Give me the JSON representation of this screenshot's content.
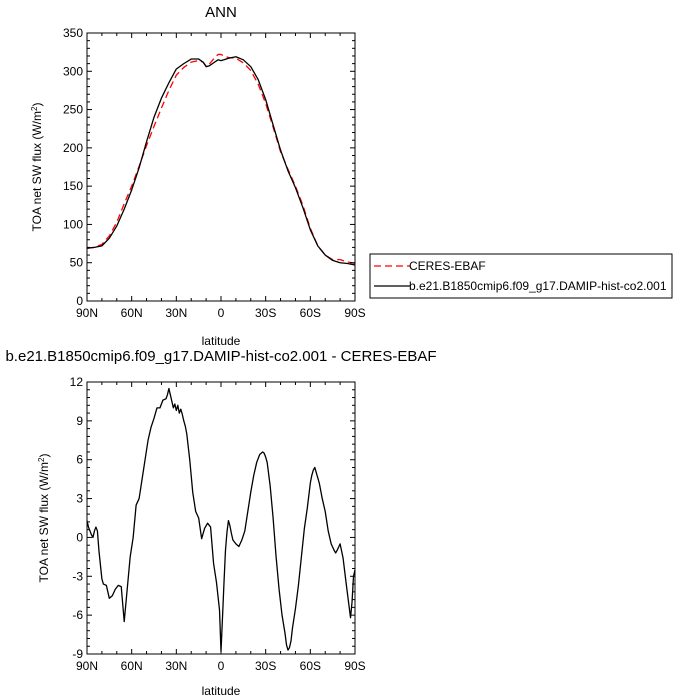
{
  "chart_data": [
    {
      "type": "line",
      "title": "ANN",
      "xlabel": "latitude",
      "ylabel": "TOA net SW flux (W/m²)",
      "ylabel_main": "TOA net SW flux (W/m",
      "ylabel_sup": "2",
      "ylabel_tail": ")",
      "x_unit": "degrees latitude (positive = North)",
      "xlim": [
        90,
        -90
      ],
      "ylim": [
        0,
        350
      ],
      "xticks": [
        90,
        60,
        30,
        0,
        -30,
        -60,
        -90
      ],
      "xtick_labels": [
        "90N",
        "60N",
        "30N",
        "0",
        "30S",
        "60S",
        "90S"
      ],
      "yticks": [
        0,
        50,
        100,
        150,
        200,
        250,
        300,
        350
      ],
      "legend_position": "right, outside the plot",
      "series": [
        {
          "name": "CERES-EBAF",
          "color": "#ff0000",
          "style": "dashed",
          "x": [
            90,
            85,
            80,
            75,
            70,
            65,
            60,
            55,
            50,
            45,
            40,
            35,
            30,
            25,
            20,
            15,
            12,
            10,
            8,
            5,
            2,
            0,
            -2,
            -5,
            -10,
            -15,
            -20,
            -25,
            -30,
            -35,
            -40,
            -45,
            -50,
            -55,
            -60,
            -65,
            -70,
            -75,
            -80,
            -85,
            -90
          ],
          "y": [
            69,
            70,
            74,
            85,
            103,
            127,
            150,
            176,
            203,
            228,
            252,
            275,
            295,
            305,
            312,
            314,
            312,
            307,
            309,
            316,
            322,
            322,
            320,
            318,
            317,
            311,
            301,
            283,
            258,
            227,
            195,
            172,
            150,
            125,
            95,
            72,
            60,
            54,
            54,
            51,
            49
          ]
        },
        {
          "name": "b.e21.B1850cmip6.f09_g17.DAMIP-hist-co2.001",
          "color": "#000000",
          "style": "solid",
          "x": [
            90,
            85,
            80,
            75,
            70,
            65,
            60,
            55,
            50,
            45,
            40,
            35,
            30,
            25,
            20,
            15,
            12,
            10,
            8,
            5,
            2,
            0,
            -2,
            -5,
            -10,
            -15,
            -20,
            -25,
            -30,
            -35,
            -40,
            -45,
            -50,
            -55,
            -60,
            -65,
            -70,
            -75,
            -80,
            -85,
            -90
          ],
          "y": [
            69,
            70,
            72,
            82,
            98,
            120,
            145,
            174,
            208,
            240,
            265,
            285,
            303,
            310,
            316,
            316,
            312,
            306,
            307,
            311,
            315,
            314,
            315,
            317,
            319,
            315,
            306,
            289,
            263,
            230,
            197,
            170,
            148,
            122,
            93,
            72,
            60,
            53,
            50,
            49,
            47
          ]
        }
      ]
    },
    {
      "type": "line",
      "title": "b.e21.B1850cmip6.f09_g17.DAMIP-hist-co2.001 - CERES-EBAF",
      "xlabel": "latitude",
      "ylabel": "TOA net SW flux (W/m²)",
      "ylabel_main": "TOA net SW flux (W/m",
      "ylabel_sup": "2",
      "ylabel_tail": ")",
      "x_unit": "degrees latitude (positive = North)",
      "xlim": [
        90,
        -90
      ],
      "ylim": [
        -9,
        12
      ],
      "xticks": [
        90,
        60,
        30,
        0,
        -30,
        -60,
        -90
      ],
      "xtick_labels": [
        "90N",
        "60N",
        "30N",
        "0",
        "30S",
        "60S",
        "90S"
      ],
      "yticks": [
        -9,
        -6,
        -3,
        0,
        3,
        6,
        9,
        12
      ],
      "series": [
        {
          "color": "#000000",
          "style": "solid",
          "x": [
            90,
            89,
            87,
            86,
            85,
            84,
            83,
            82,
            80,
            79,
            77,
            75,
            73,
            71,
            69,
            67,
            65,
            63,
            61,
            59,
            57,
            55,
            53,
            51,
            49,
            47,
            45,
            43,
            41,
            39,
            37,
            36,
            35,
            34,
            33,
            32,
            31,
            30,
            29,
            28,
            27,
            26,
            25,
            24,
            23,
            21,
            19,
            17,
            15,
            13,
            11,
            9,
            7,
            5,
            3,
            1,
            0,
            -1,
            -2,
            -3,
            -4,
            -5,
            -6,
            -7,
            -8,
            -10,
            -12,
            -14,
            -16,
            -18,
            -20,
            -22,
            -24,
            -26,
            -28,
            -29,
            -30,
            -31,
            -33,
            -35,
            -37,
            -39,
            -41,
            -43,
            -44,
            -45,
            -46,
            -47,
            -48,
            -50,
            -52,
            -54,
            -56,
            -58,
            -60,
            -61,
            -62,
            -63,
            -64,
            -66,
            -68,
            -70,
            -72,
            -74,
            -76,
            -77,
            -78,
            -80,
            -82,
            -84,
            -86,
            -87,
            -88,
            -89,
            -90
          ],
          "y": [
            1.3,
            0.8,
            0.2,
            0.0,
            0.5,
            0.8,
            0.5,
            -1.0,
            -3.2,
            -3.6,
            -3.7,
            -4.7,
            -4.5,
            -4.0,
            -3.7,
            -3.8,
            -6.5,
            -4.0,
            -1.5,
            0.0,
            2.5,
            3.0,
            4.5,
            6.0,
            7.5,
            8.5,
            9.2,
            10.0,
            10.0,
            10.6,
            10.7,
            11.0,
            11.5,
            11.0,
            10.5,
            10.0,
            10.3,
            9.8,
            10.2,
            9.6,
            9.9,
            9.5,
            9.0,
            8.6,
            8.0,
            6.0,
            3.5,
            2.0,
            1.5,
            -0.1,
            0.7,
            1.1,
            0.8,
            -2.0,
            -3.5,
            -5.6,
            -8.8,
            -6.2,
            -3.5,
            -1.0,
            0.4,
            1.3,
            0.9,
            0.3,
            -0.2,
            -0.5,
            -0.7,
            -0.2,
            0.5,
            2.0,
            3.5,
            4.8,
            5.8,
            6.4,
            6.6,
            6.5,
            6.2,
            5.8,
            4.0,
            1.5,
            -1.5,
            -4.0,
            -6.0,
            -7.4,
            -8.3,
            -8.7,
            -8.5,
            -8.0,
            -7.0,
            -5.5,
            -3.7,
            -1.5,
            0.7,
            2.3,
            4.2,
            4.8,
            5.2,
            5.4,
            5.0,
            4.2,
            3.0,
            2.0,
            0.5,
            -0.5,
            -1.0,
            -1.2,
            -1.0,
            -0.5,
            -1.6,
            -3.5,
            -5.3,
            -6.2,
            -5.0,
            -3.0,
            -2.5
          ]
        }
      ]
    }
  ]
}
